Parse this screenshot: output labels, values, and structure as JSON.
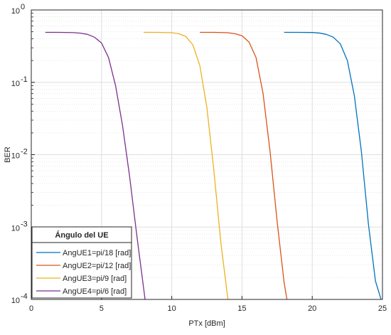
{
  "chart_data": {
    "type": "line",
    "title": "",
    "xlabel": "PTx [dBm]",
    "ylabel": "BER",
    "xlim": [
      0,
      25
    ],
    "ylim": [
      0.0001,
      1
    ],
    "yscale": "log",
    "grid": "on",
    "x_ticks": [
      0,
      5,
      10,
      15,
      20,
      25
    ],
    "y_ticks": [
      {
        "value": 1,
        "mantissa": "10",
        "exponent": "0"
      },
      {
        "value": 0.1,
        "mantissa": "10",
        "exponent": "-1"
      },
      {
        "value": 0.01,
        "mantissa": "10",
        "exponent": "-2"
      },
      {
        "value": 0.001,
        "mantissa": "10",
        "exponent": "-3"
      },
      {
        "value": 0.0001,
        "mantissa": "10",
        "exponent": "-4"
      }
    ],
    "legend": {
      "title": "Ángulo del UE",
      "location": "bottom-left"
    },
    "series": [
      {
        "name": "AngUE1=pi/18 [rad]",
        "color": "#0072BD",
        "x": [
          18,
          19,
          20,
          20.5,
          21,
          21.5,
          22,
          22.5,
          23,
          23.5,
          24,
          24.5,
          24.9
        ],
        "y": [
          0.49,
          0.49,
          0.488,
          0.48,
          0.46,
          0.42,
          0.34,
          0.2,
          0.065,
          0.011,
          0.0011,
          0.00018,
          0.0001
        ]
      },
      {
        "name": "AngUE2=pi/12 [rad]",
        "color": "#D95319",
        "x": [
          12,
          13,
          14,
          14.5,
          15,
          15.5,
          16,
          16.5,
          17,
          17.5,
          18,
          18.2
        ],
        "y": [
          0.49,
          0.49,
          0.485,
          0.47,
          0.44,
          0.36,
          0.22,
          0.07,
          0.011,
          0.0012,
          0.00017,
          0.0001
        ]
      },
      {
        "name": "AngUE3=pi/9 [rad]",
        "color": "#EDB120",
        "x": [
          8,
          9,
          10,
          10.5,
          11,
          11.5,
          12,
          12.5,
          13,
          13.5,
          14
        ],
        "y": [
          0.49,
          0.49,
          0.485,
          0.47,
          0.43,
          0.33,
          0.17,
          0.045,
          0.006,
          0.0006,
          0.0001
        ]
      },
      {
        "name": "AngUE4=pi/6 [rad]",
        "color": "#7E2F8E",
        "x": [
          1,
          2,
          3,
          3.5,
          4,
          4.5,
          5,
          5.5,
          6,
          6.5,
          7,
          7.5,
          8.1
        ],
        "y": [
          0.49,
          0.49,
          0.486,
          0.478,
          0.46,
          0.42,
          0.35,
          0.22,
          0.09,
          0.025,
          0.005,
          0.0008,
          0.0001
        ]
      }
    ]
  }
}
